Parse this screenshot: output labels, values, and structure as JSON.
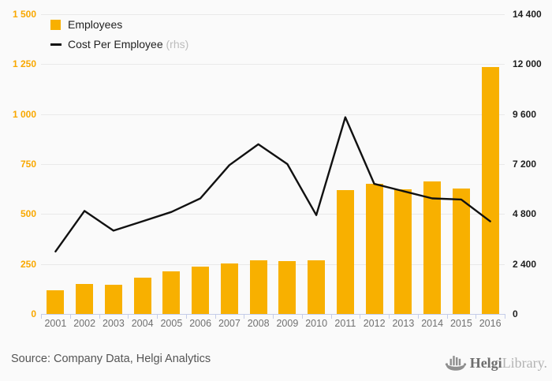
{
  "legend": {
    "employees": "Employees",
    "cost": "Cost Per Employee",
    "rhs_suffix": "(rhs)"
  },
  "footer": {
    "source": "Source: Company Data, Helgi Analytics",
    "logo_bold": "Helgi",
    "logo_light": "Library."
  },
  "colors": {
    "bar": "#f8b000",
    "line": "#111111",
    "left_axis_text": "#f9a800",
    "right_axis_text": "#1f1f1f",
    "gridline": "#e9e9e9",
    "axis_line": "#c5cde8",
    "background": "#fafafa"
  },
  "chart_data": {
    "type": "bar",
    "subtype": "bar+line dual axis",
    "categories": [
      "2001",
      "2002",
      "2003",
      "2004",
      "2005",
      "2006",
      "2007",
      "2008",
      "2009",
      "2010",
      "2011",
      "2012",
      "2013",
      "2014",
      "2015",
      "2016"
    ],
    "series": [
      {
        "name": "Employees",
        "type": "bar",
        "axis": "left",
        "color": "#f8b000",
        "values": [
          120,
          150,
          148,
          180,
          212,
          235,
          252,
          268,
          263,
          267,
          620,
          652,
          622,
          663,
          628,
          1235
        ]
      },
      {
        "name": "Cost Per Employee (rhs)",
        "type": "line",
        "axis": "right",
        "color": "#111111",
        "values": [
          3000,
          4950,
          4000,
          4450,
          4900,
          5550,
          7150,
          8150,
          7200,
          4750,
          9450,
          6250,
          5900,
          5550,
          5500,
          4450
        ]
      }
    ],
    "title": "",
    "xlabel": "",
    "ylabel_left": "",
    "ylabel_right": "",
    "left_axis": {
      "min": 0,
      "max": 1500,
      "tick_labels": [
        "1 500",
        "1 250",
        "1 000",
        "750",
        "500",
        "250",
        "0"
      ]
    },
    "right_axis": {
      "min": 0,
      "max": 14400,
      "tick_labels": [
        "14 400",
        "12 000",
        "9 600",
        "7 200",
        "4 800",
        "2 400",
        "0"
      ]
    },
    "grid": true,
    "legend_position": "top-left"
  }
}
